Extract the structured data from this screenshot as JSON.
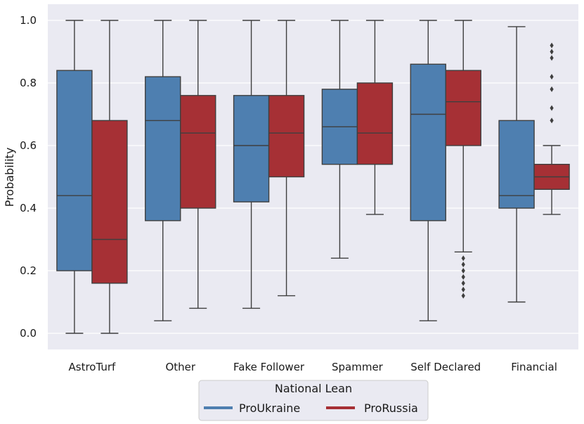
{
  "chart_data": {
    "type": "boxplot",
    "title": "",
    "xlabel": "",
    "ylabel": "Probability",
    "ylim": [
      -0.05,
      1.05
    ],
    "yticks": [
      0.0,
      0.2,
      0.4,
      0.6,
      0.8,
      1.0
    ],
    "ytick_labels": [
      "0.0",
      "0.2",
      "0.4",
      "0.6",
      "0.8",
      "1.0"
    ],
    "grid": true,
    "categories": [
      "AstroTurf",
      "Other",
      "Fake Follower",
      "Spammer",
      "Self Declared",
      "Financial"
    ],
    "legend": {
      "title": "National Lean",
      "placement": "bottom-center"
    },
    "series": [
      {
        "name": "ProUkraine",
        "color": "#4e7fb0",
        "boxes": [
          {
            "min": 0.0,
            "q1": 0.2,
            "median": 0.44,
            "q3": 0.84,
            "max": 1.0,
            "outliers": []
          },
          {
            "min": 0.04,
            "q1": 0.36,
            "median": 0.68,
            "q3": 0.82,
            "max": 1.0,
            "outliers": []
          },
          {
            "min": 0.08,
            "q1": 0.42,
            "median": 0.6,
            "q3": 0.76,
            "max": 1.0,
            "outliers": []
          },
          {
            "min": 0.24,
            "q1": 0.54,
            "median": 0.66,
            "q3": 0.78,
            "max": 1.0,
            "outliers": []
          },
          {
            "min": 0.04,
            "q1": 0.36,
            "median": 0.7,
            "q3": 0.86,
            "max": 1.0,
            "outliers": []
          },
          {
            "min": 0.1,
            "q1": 0.4,
            "median": 0.44,
            "q3": 0.68,
            "max": 0.98,
            "outliers": []
          }
        ]
      },
      {
        "name": "ProRussia",
        "color": "#a63035",
        "boxes": [
          {
            "min": 0.0,
            "q1": 0.16,
            "median": 0.3,
            "q3": 0.68,
            "max": 1.0,
            "outliers": []
          },
          {
            "min": 0.08,
            "q1": 0.4,
            "median": 0.64,
            "q3": 0.76,
            "max": 1.0,
            "outliers": []
          },
          {
            "min": 0.12,
            "q1": 0.5,
            "median": 0.64,
            "q3": 0.76,
            "max": 1.0,
            "outliers": []
          },
          {
            "min": 0.38,
            "q1": 0.54,
            "median": 0.64,
            "q3": 0.8,
            "max": 1.0,
            "outliers": []
          },
          {
            "min": 0.26,
            "q1": 0.6,
            "median": 0.74,
            "q3": 0.84,
            "max": 1.0,
            "outliers": [
              0.24,
              0.22,
              0.2,
              0.18,
              0.16,
              0.14,
              0.12
            ]
          },
          {
            "min": 0.38,
            "q1": 0.46,
            "median": 0.5,
            "q3": 0.54,
            "max": 0.6,
            "outliers": [
              0.92,
              0.9,
              0.88,
              0.82,
              0.78,
              0.72,
              0.68
            ]
          }
        ]
      }
    ]
  }
}
